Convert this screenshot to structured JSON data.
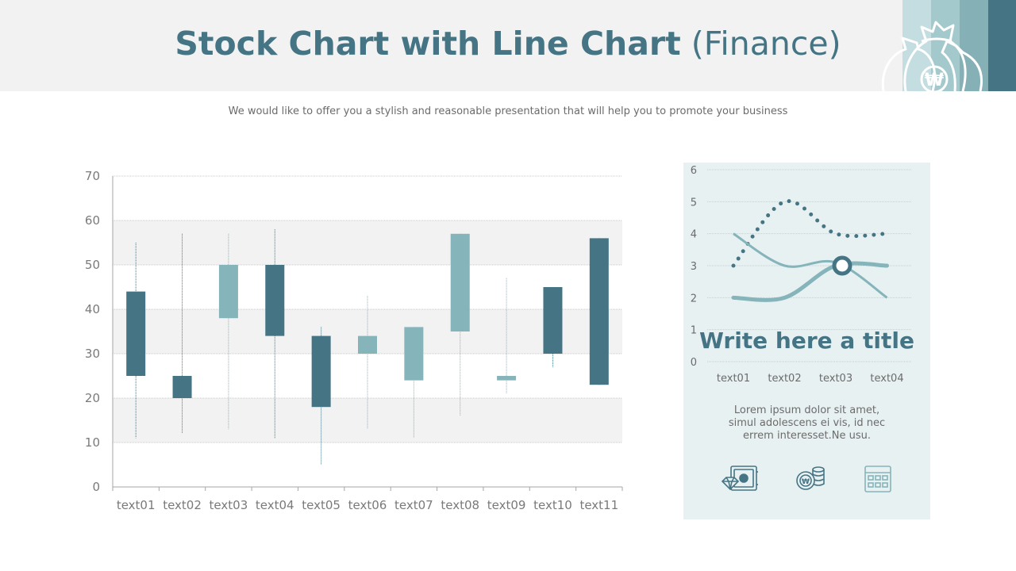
{
  "header": {
    "title_bold": "Stock Chart with Line Chart",
    "title_light": "(Finance)",
    "subtitle": "We would like to offer you a stylish and reasonable presentation that will help you to promote your business"
  },
  "colors": {
    "dark_teal": "#457585",
    "light_teal": "#85b4ba",
    "panel_bg": "#e8f1f2",
    "header_bg": "#f2f2f2",
    "stripes": [
      "#c3dde0",
      "#a3c9cd",
      "#85b0b6",
      "#457585"
    ]
  },
  "icons": {
    "header": "money-bags-icon",
    "panel": [
      "safe-diamond-icon",
      "coins-icon",
      "calculator-icon"
    ]
  },
  "chart_data": [
    {
      "type": "candlestick",
      "categories": [
        "text01",
        "text02",
        "text03",
        "text04",
        "text05",
        "text06",
        "text07",
        "text08",
        "text09",
        "text10",
        "text11"
      ],
      "series": [
        {
          "open": 44,
          "close": 25,
          "high": 55,
          "low": 11
        },
        {
          "open": 25,
          "close": 20,
          "high": 57,
          "low": 12
        },
        {
          "open": 38,
          "close": 50,
          "high": 57,
          "low": 13
        },
        {
          "open": 50,
          "close": 34,
          "high": 58,
          "low": 11
        },
        {
          "open": 34,
          "close": 18,
          "high": 36,
          "low": 5
        },
        {
          "open": 30,
          "close": 34,
          "high": 43,
          "low": 13
        },
        {
          "open": 24,
          "close": 36,
          "high": 36,
          "low": 11
        },
        {
          "open": 35,
          "close": 57,
          "high": 57,
          "low": 16
        },
        {
          "open": 24,
          "close": 25,
          "high": 47,
          "low": 21
        },
        {
          "open": 45,
          "close": 30,
          "high": 45,
          "low": 27
        },
        {
          "open": 56,
          "close": 23,
          "high": 56,
          "low": 23
        }
      ],
      "ylim": [
        0,
        70
      ],
      "yticks": [
        0,
        10,
        20,
        30,
        40,
        50,
        60,
        70
      ],
      "grid": true
    },
    {
      "type": "line",
      "categories": [
        "text01",
        "text02",
        "text03",
        "text04"
      ],
      "series": [
        {
          "values": [
            3,
            5,
            4,
            4
          ],
          "style": "dotted"
        },
        {
          "values": [
            4,
            3,
            3.1,
            2
          ],
          "style": "thin"
        },
        {
          "values": [
            2,
            2,
            3,
            3
          ],
          "style": "thick",
          "marker_index": 2
        }
      ],
      "ylim": [
        0,
        6
      ],
      "yticks": [
        0,
        1,
        2,
        3,
        4,
        5,
        6
      ],
      "grid": true
    }
  ],
  "panel": {
    "title": "Write here a title",
    "text_lines": [
      "Lorem ipsum dolor sit amet,",
      "simul adolescens ei vis, id nec",
      "errem interesset.Ne usu."
    ]
  }
}
